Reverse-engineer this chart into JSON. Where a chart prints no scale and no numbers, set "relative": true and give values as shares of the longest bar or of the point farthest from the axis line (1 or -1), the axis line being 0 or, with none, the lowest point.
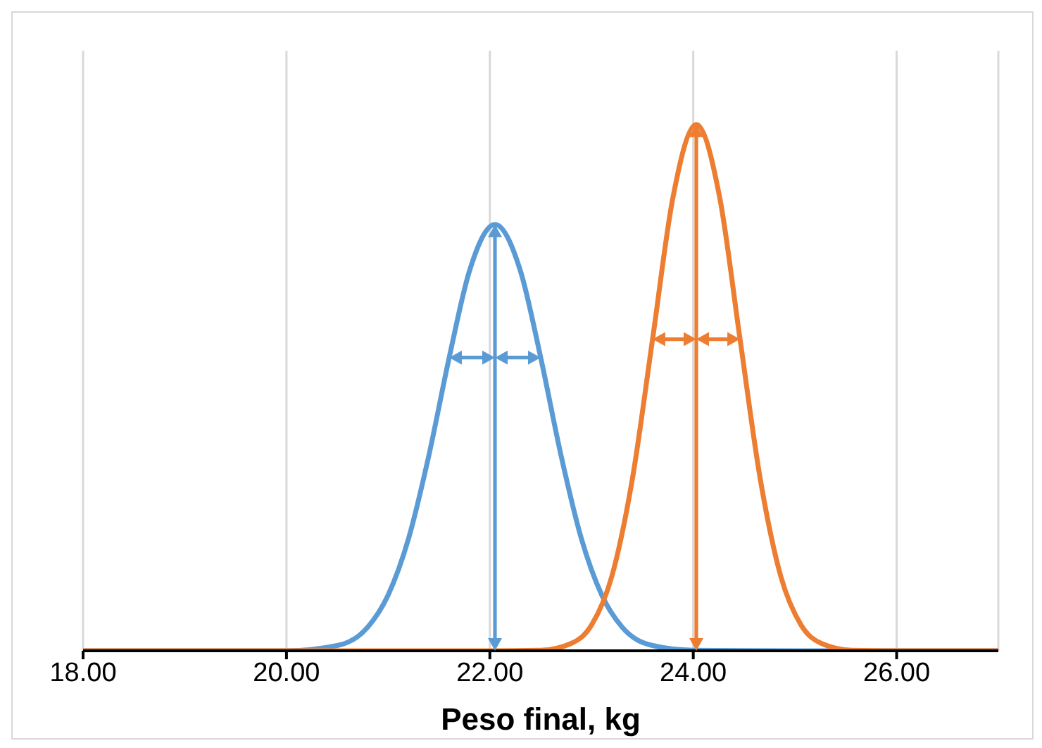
{
  "chart_data": {
    "type": "line",
    "xlabel": "Peso final, kg",
    "relative": true,
    "xlim": [
      18,
      27
    ],
    "xticks": [
      {
        "value": 18,
        "label": "18.00"
      },
      {
        "value": 20,
        "label": "20.00"
      },
      {
        "value": 22,
        "label": "22.00"
      },
      {
        "value": 24,
        "label": "24.00"
      },
      {
        "value": 26,
        "label": "26.00"
      }
    ],
    "grid": "x",
    "series": [
      {
        "color": "#5b9bd5",
        "x": [
          18,
          19,
          20,
          20.5,
          20.8,
          21.0,
          21.2,
          21.4,
          21.6,
          21.8,
          22.05,
          22.3,
          22.5,
          22.7,
          22.9,
          23.1,
          23.3,
          23.6,
          24,
          25,
          26,
          27
        ],
        "values": [
          0,
          0,
          0,
          0.01,
          0.045,
          0.106,
          0.213,
          0.371,
          0.557,
          0.722,
          0.81,
          0.722,
          0.557,
          0.371,
          0.213,
          0.106,
          0.045,
          0.01,
          0.001,
          0,
          0,
          0
        ]
      },
      {
        "color": "#ed7d31",
        "x": [
          18,
          20,
          22.0,
          22.5,
          22.8,
          23.0,
          23.2,
          23.4,
          23.6,
          23.8,
          24.03,
          24.26,
          24.46,
          24.66,
          24.86,
          25.06,
          25.26,
          25.56,
          26.06,
          27
        ],
        "values": [
          0,
          0,
          0,
          0.001,
          0.014,
          0.049,
          0.142,
          0.325,
          0.592,
          0.861,
          1,
          0.861,
          0.592,
          0.325,
          0.142,
          0.049,
          0.014,
          0.001,
          0,
          0
        ]
      }
    ]
  }
}
